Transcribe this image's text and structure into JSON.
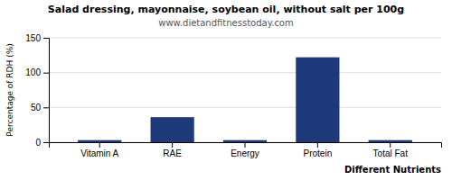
{
  "chart_data": {
    "type": "bar",
    "title": "Salad dressing, mayonnaise, soybean oil, without salt per 100g",
    "subtitle": "www.dietandfitnesstoday.com",
    "xlabel": "Different Nutrients",
    "ylabel": "Percentage of RDH (%)",
    "categories": [
      "Vitamin A",
      "RAE",
      "Energy",
      "Protein",
      "Total Fat"
    ],
    "values": [
      3,
      36,
      3,
      122,
      3
    ],
    "color": "#1f3a7a",
    "ylim": [
      0,
      150
    ],
    "yticks": [
      0,
      50,
      100,
      150
    ],
    "grid": true
  }
}
